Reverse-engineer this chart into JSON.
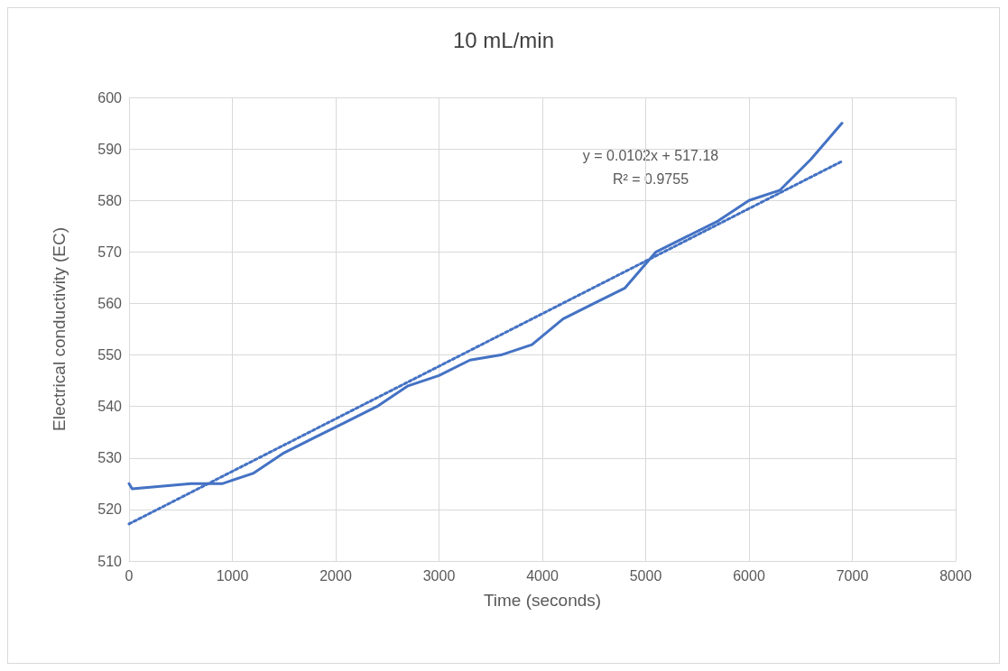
{
  "chart_data": {
    "type": "line",
    "title": "10 mL/min",
    "xlabel": "Time (seconds)",
    "ylabel": "Electrical conductivity (EC)",
    "annotations": [
      "y = 0.0102x + 517.18\nR² = 0.9755"
    ],
    "series": [
      {
        "color": "#4472c4",
        "line_style": "solid",
        "x": [
          0,
          30,
          600,
          900,
          1200,
          1500,
          1800,
          2100,
          2400,
          2700,
          3000,
          3300,
          3600,
          3900,
          4200,
          4500,
          4800,
          5100,
          5400,
          5700,
          6000,
          6300,
          6600,
          6900
        ],
        "values": [
          525,
          524,
          525,
          525,
          527,
          531,
          534,
          537,
          540,
          544,
          546,
          549,
          550,
          552,
          557,
          560,
          563,
          570,
          573,
          576,
          580,
          582,
          588,
          595
        ]
      },
      {
        "color": "#4472c4",
        "line_style": "dotted",
        "x": [
          0,
          6900
        ],
        "values": [
          517.2,
          587.6
        ]
      }
    ],
    "xlim": [
      0,
      8000
    ],
    "xticks": [
      0,
      1000,
      2000,
      3000,
      4000,
      5000,
      6000,
      7000,
      8000
    ],
    "ylim": [
      510,
      600
    ],
    "yticks": [
      510,
      520,
      530,
      540,
      550,
      560,
      570,
      580,
      590,
      600
    ],
    "grid": true,
    "marker": "none"
  }
}
